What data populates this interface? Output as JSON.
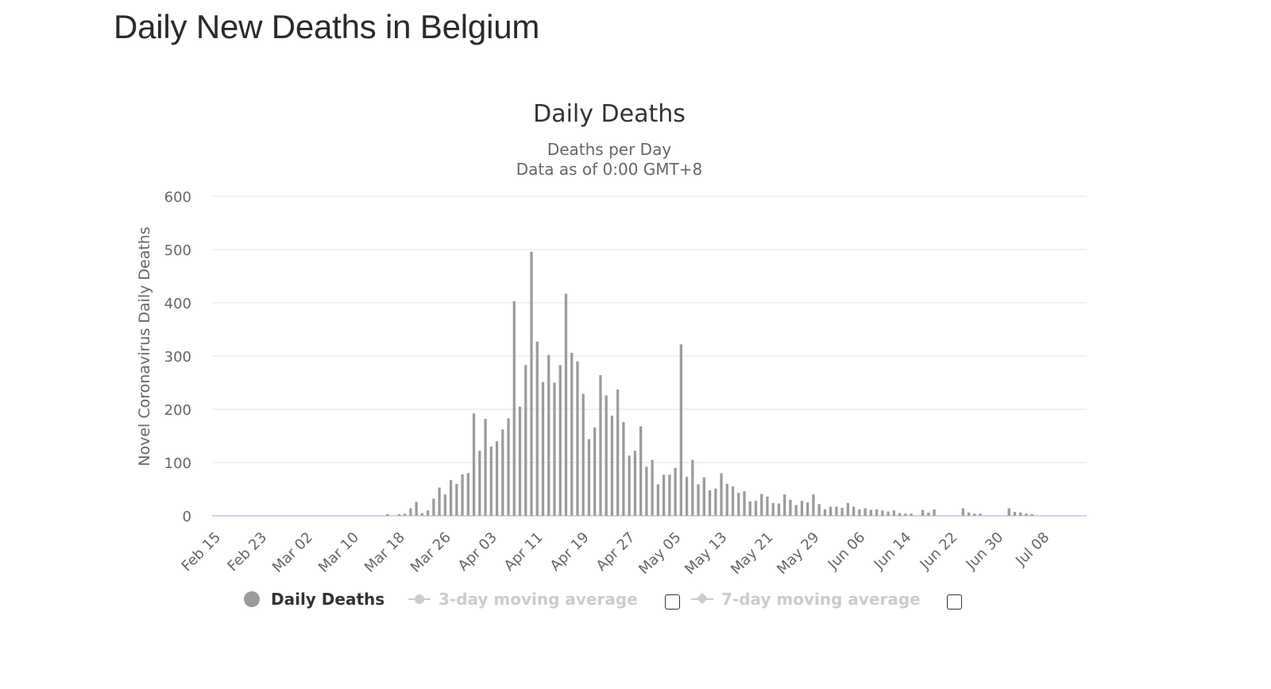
{
  "page": {
    "title": "Daily New Deaths in Belgium"
  },
  "chart_data": {
    "type": "bar",
    "title": "Daily Deaths",
    "subtitle_lines": [
      "Deaths per Day",
      "Data as of 0:00 GMT+8"
    ],
    "ylabel": "Novel Coronavirus Daily Deaths",
    "ylim": [
      0,
      600
    ],
    "yticks": [
      0,
      100,
      200,
      300,
      400,
      500,
      600
    ],
    "grid": true,
    "x_start": "Feb 15",
    "xtick_labels": [
      "Feb 15",
      "Feb 23",
      "Mar 02",
      "Mar 10",
      "Mar 18",
      "Mar 26",
      "Apr 03",
      "Apr 11",
      "Apr 19",
      "Apr 27",
      "May 05",
      "May 13",
      "May 21",
      "May 29",
      "Jun 06",
      "Jun 14",
      "Jun 22",
      "Jun 30",
      "Jul 08"
    ],
    "series": [
      {
        "name": "Daily Deaths",
        "color": "#9b9b9b",
        "values": [
          0,
          0,
          0,
          0,
          0,
          0,
          0,
          0,
          0,
          0,
          0,
          0,
          0,
          0,
          0,
          0,
          0,
          0,
          0,
          0,
          0,
          0,
          0,
          0,
          0,
          0,
          0,
          0,
          0,
          0,
          3,
          0,
          3,
          4,
          14,
          26,
          5,
          10,
          32,
          53,
          40,
          67,
          60,
          78,
          80,
          192,
          122,
          182,
          130,
          140,
          162,
          183,
          403,
          205,
          283,
          496,
          327,
          251,
          302,
          250,
          283,
          417,
          306,
          290,
          229,
          144,
          166,
          264,
          226,
          188,
          237,
          176,
          113,
          122,
          168,
          92,
          105,
          59,
          77,
          77,
          90,
          322,
          73,
          105,
          59,
          72,
          48,
          51,
          80,
          60,
          55,
          43,
          46,
          27,
          28,
          41,
          36,
          24,
          23,
          40,
          30,
          20,
          28,
          25,
          40,
          22,
          12,
          17,
          17,
          15,
          24,
          17,
          12,
          14,
          11,
          12,
          10,
          8,
          10,
          5,
          4,
          4,
          0,
          11,
          6,
          12,
          0,
          0,
          0,
          0,
          14,
          6,
          4,
          4,
          0,
          0,
          0,
          0,
          14,
          7,
          6,
          4,
          3,
          0,
          0,
          0,
          0,
          0,
          0,
          0,
          0,
          0
        ]
      }
    ],
    "legend": {
      "placement": "bottom",
      "items": [
        {
          "label": "Daily Deaths",
          "active": true
        },
        {
          "label": "3-day moving average",
          "active": false
        },
        {
          "label": "7-day moving average",
          "active": false
        }
      ]
    }
  }
}
